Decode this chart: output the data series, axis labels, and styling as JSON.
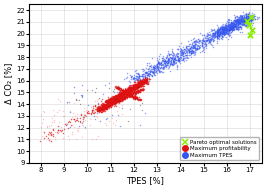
{
  "title": "",
  "xlabel": "TPES [%]",
  "ylabel": "Δ CO₂ [%]",
  "xlim": [
    7.5,
    17.5
  ],
  "ylim": [
    9,
    22.5
  ],
  "xticks": [
    8,
    9,
    10,
    11,
    12,
    13,
    14,
    15,
    16,
    17
  ],
  "yticks": [
    9,
    10,
    11,
    12,
    13,
    14,
    15,
    16,
    17,
    18,
    19,
    20,
    21,
    22
  ],
  "legend_labels": [
    "Pareto optimal solutions",
    "Maximum profitability",
    "Maximum TPES"
  ],
  "red_color": "#dd1111",
  "red_light_color": "#ff8888",
  "blue_color": "#3355ee",
  "blue_light_color": "#7799ff",
  "black_color": "#111111",
  "pareto_color": "#88ee00",
  "bg_color": "#ffffff",
  "grid_color": "#cccccc"
}
